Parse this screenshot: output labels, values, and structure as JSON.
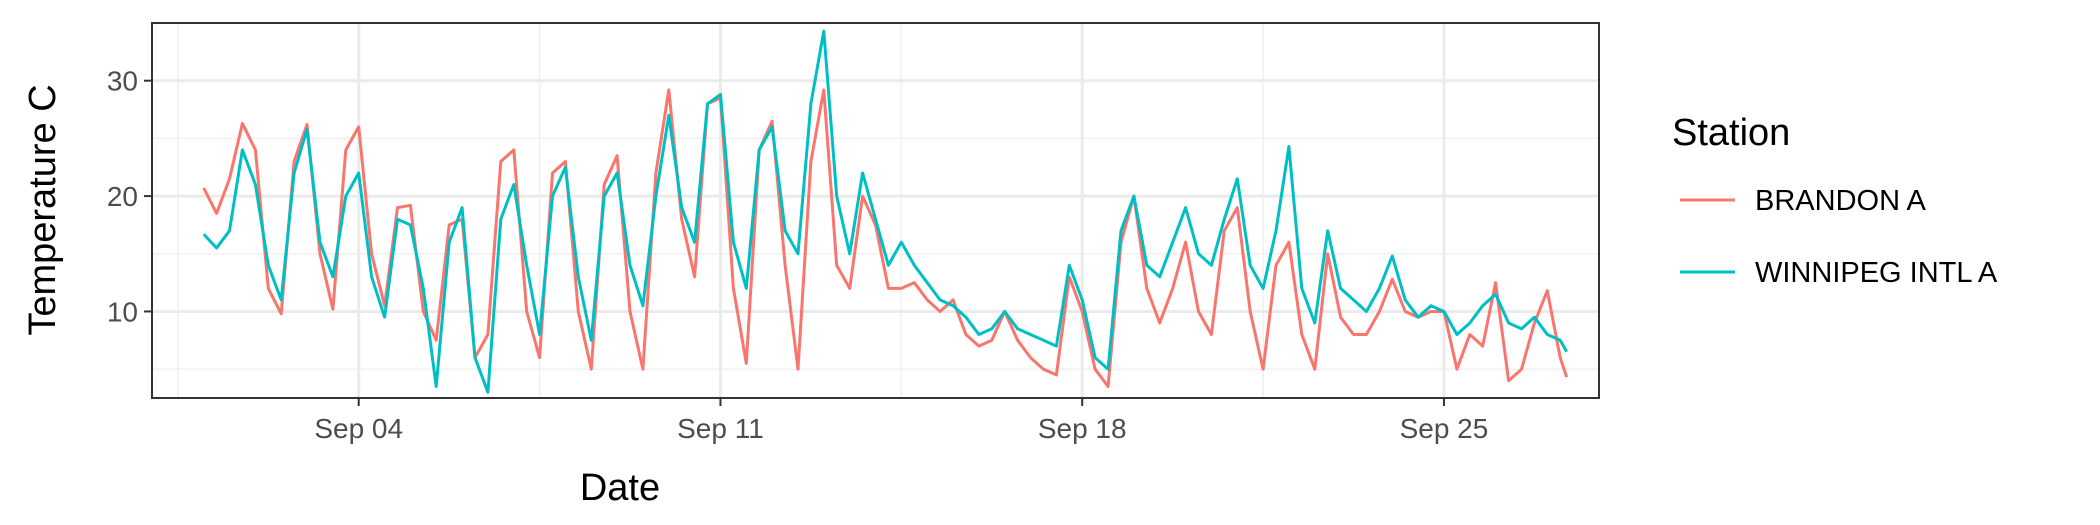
{
  "chart_data": {
    "type": "line",
    "title": "",
    "xlabel": "Date",
    "ylabel": "Temperature C",
    "x_type": "date",
    "xlim": [
      "2017-08-31T00:00",
      "2017-09-28T00:00"
    ],
    "ylim": [
      2.5,
      35
    ],
    "x_ticks": [
      {
        "value": "2017-09-04",
        "label": "Sep 04"
      },
      {
        "value": "2017-09-11",
        "label": "Sep 11"
      },
      {
        "value": "2017-09-18",
        "label": "Sep 18"
      },
      {
        "value": "2017-09-25",
        "label": "Sep 25"
      }
    ],
    "y_ticks": [
      10,
      20,
      30
    ],
    "grid": true,
    "legend": {
      "title": "Station",
      "position": "right"
    },
    "series": [
      {
        "name": "BRANDON A",
        "color": "#F8766D",
        "points": [
          [
            "2017-09-01T00:00",
            20.7
          ],
          [
            "2017-09-01T06:00",
            18.5
          ],
          [
            "2017-09-01T12:00",
            21.5
          ],
          [
            "2017-09-01T18:00",
            26.3
          ],
          [
            "2017-09-02T00:00",
            24.0
          ],
          [
            "2017-09-02T06:00",
            12.0
          ],
          [
            "2017-09-02T12:00",
            9.8
          ],
          [
            "2017-09-02T18:00",
            23.0
          ],
          [
            "2017-09-03T00:00",
            26.2
          ],
          [
            "2017-09-03T06:00",
            15.0
          ],
          [
            "2017-09-03T12:00",
            10.2
          ],
          [
            "2017-09-03T18:00",
            24.0
          ],
          [
            "2017-09-04T00:00",
            26.0
          ],
          [
            "2017-09-04T06:00",
            15.0
          ],
          [
            "2017-09-04T12:00",
            10.5
          ],
          [
            "2017-09-04T18:00",
            19.0
          ],
          [
            "2017-09-05T00:00",
            19.2
          ],
          [
            "2017-09-05T06:00",
            10.0
          ],
          [
            "2017-09-05T12:00",
            7.5
          ],
          [
            "2017-09-05T18:00",
            17.5
          ],
          [
            "2017-09-06T00:00",
            18.0
          ],
          [
            "2017-09-06T06:00",
            6.0
          ],
          [
            "2017-09-06T12:00",
            8.0
          ],
          [
            "2017-09-06T18:00",
            23.0
          ],
          [
            "2017-09-07T00:00",
            24.0
          ],
          [
            "2017-09-07T06:00",
            10.0
          ],
          [
            "2017-09-07T12:00",
            6.0
          ],
          [
            "2017-09-07T18:00",
            22.0
          ],
          [
            "2017-09-08T00:00",
            23.0
          ],
          [
            "2017-09-08T06:00",
            10.0
          ],
          [
            "2017-09-08T12:00",
            5.0
          ],
          [
            "2017-09-08T18:00",
            21.0
          ],
          [
            "2017-09-09T00:00",
            23.5
          ],
          [
            "2017-09-09T06:00",
            10.0
          ],
          [
            "2017-09-09T12:00",
            5.0
          ],
          [
            "2017-09-09T18:00",
            22.0
          ],
          [
            "2017-09-10T00:00",
            29.2
          ],
          [
            "2017-09-10T06:00",
            18.0
          ],
          [
            "2017-09-10T12:00",
            13.0
          ],
          [
            "2017-09-10T18:00",
            28.0
          ],
          [
            "2017-09-11T00:00",
            28.5
          ],
          [
            "2017-09-11T06:00",
            12.0
          ],
          [
            "2017-09-11T12:00",
            5.5
          ],
          [
            "2017-09-11T18:00",
            24.0
          ],
          [
            "2017-09-12T00:00",
            26.5
          ],
          [
            "2017-09-12T06:00",
            14.0
          ],
          [
            "2017-09-12T12:00",
            5.0
          ],
          [
            "2017-09-12T18:00",
            23.0
          ],
          [
            "2017-09-13T00:00",
            29.2
          ],
          [
            "2017-09-13T06:00",
            14.0
          ],
          [
            "2017-09-13T12:00",
            12.0
          ],
          [
            "2017-09-13T18:00",
            20.0
          ],
          [
            "2017-09-14T00:00",
            17.5
          ],
          [
            "2017-09-14T06:00",
            12.0
          ],
          [
            "2017-09-14T12:00",
            12.0
          ],
          [
            "2017-09-14T18:00",
            12.5
          ],
          [
            "2017-09-15T00:00",
            11.0
          ],
          [
            "2017-09-15T06:00",
            10.0
          ],
          [
            "2017-09-15T12:00",
            11.0
          ],
          [
            "2017-09-15T18:00",
            8.0
          ],
          [
            "2017-09-16T00:00",
            7.0
          ],
          [
            "2017-09-16T06:00",
            7.5
          ],
          [
            "2017-09-16T12:00",
            10.0
          ],
          [
            "2017-09-16T18:00",
            7.5
          ],
          [
            "2017-09-17T00:00",
            6.0
          ],
          [
            "2017-09-17T06:00",
            5.0
          ],
          [
            "2017-09-17T12:00",
            4.5
          ],
          [
            "2017-09-17T18:00",
            13.0
          ],
          [
            "2017-09-18T00:00",
            10.0
          ],
          [
            "2017-09-18T06:00",
            5.0
          ],
          [
            "2017-09-18T12:00",
            3.5
          ],
          [
            "2017-09-18T18:00",
            16.0
          ],
          [
            "2017-09-19T00:00",
            20.0
          ],
          [
            "2017-09-19T06:00",
            12.0
          ],
          [
            "2017-09-19T12:00",
            9.0
          ],
          [
            "2017-09-19T18:00",
            12.0
          ],
          [
            "2017-09-20T00:00",
            16.0
          ],
          [
            "2017-09-20T06:00",
            10.0
          ],
          [
            "2017-09-20T12:00",
            8.0
          ],
          [
            "2017-09-20T18:00",
            17.0
          ],
          [
            "2017-09-21T00:00",
            19.0
          ],
          [
            "2017-09-21T06:00",
            10.0
          ],
          [
            "2017-09-21T12:00",
            5.0
          ],
          [
            "2017-09-21T18:00",
            14.0
          ],
          [
            "2017-09-22T00:00",
            16.0
          ],
          [
            "2017-09-22T06:00",
            8.0
          ],
          [
            "2017-09-22T12:00",
            5.0
          ],
          [
            "2017-09-22T18:00",
            15.0
          ],
          [
            "2017-09-23T00:00",
            9.5
          ],
          [
            "2017-09-23T06:00",
            8.0
          ],
          [
            "2017-09-23T12:00",
            8.0
          ],
          [
            "2017-09-23T18:00",
            10.0
          ],
          [
            "2017-09-24T00:00",
            12.8
          ],
          [
            "2017-09-24T06:00",
            10.0
          ],
          [
            "2017-09-24T12:00",
            9.5
          ],
          [
            "2017-09-24T18:00",
            10.0
          ],
          [
            "2017-09-25T00:00",
            10.0
          ],
          [
            "2017-09-25T06:00",
            5.0
          ],
          [
            "2017-09-25T12:00",
            8.0
          ],
          [
            "2017-09-25T18:00",
            7.0
          ],
          [
            "2017-09-26T00:00",
            12.5
          ],
          [
            "2017-09-26T06:00",
            4.0
          ],
          [
            "2017-09-26T12:00",
            5.0
          ],
          [
            "2017-09-26T18:00",
            9.0
          ],
          [
            "2017-09-27T00:00",
            11.8
          ],
          [
            "2017-09-27T06:00",
            6.0
          ],
          [
            "2017-09-27T09:00",
            4.3
          ]
        ]
      },
      {
        "name": "WINNIPEG INTL A",
        "color": "#00BFC4",
        "points": [
          [
            "2017-09-01T00:00",
            16.7
          ],
          [
            "2017-09-01T06:00",
            15.5
          ],
          [
            "2017-09-01T12:00",
            17.0
          ],
          [
            "2017-09-01T18:00",
            24.0
          ],
          [
            "2017-09-02T00:00",
            21.0
          ],
          [
            "2017-09-02T06:00",
            14.0
          ],
          [
            "2017-09-02T12:00",
            11.0
          ],
          [
            "2017-09-02T18:00",
            22.0
          ],
          [
            "2017-09-03T00:00",
            25.8
          ],
          [
            "2017-09-03T06:00",
            16.0
          ],
          [
            "2017-09-03T12:00",
            13.0
          ],
          [
            "2017-09-03T18:00",
            20.0
          ],
          [
            "2017-09-04T00:00",
            22.0
          ],
          [
            "2017-09-04T06:00",
            13.0
          ],
          [
            "2017-09-04T12:00",
            9.5
          ],
          [
            "2017-09-04T18:00",
            18.0
          ],
          [
            "2017-09-05T00:00",
            17.5
          ],
          [
            "2017-09-05T06:00",
            12.0
          ],
          [
            "2017-09-05T12:00",
            3.5
          ],
          [
            "2017-09-05T18:00",
            16.0
          ],
          [
            "2017-09-06T00:00",
            19.0
          ],
          [
            "2017-09-06T06:00",
            6.0
          ],
          [
            "2017-09-06T12:00",
            3.0
          ],
          [
            "2017-09-06T18:00",
            18.0
          ],
          [
            "2017-09-07T00:00",
            21.0
          ],
          [
            "2017-09-07T06:00",
            14.0
          ],
          [
            "2017-09-07T12:00",
            8.0
          ],
          [
            "2017-09-07T18:00",
            20.0
          ],
          [
            "2017-09-08T00:00",
            22.5
          ],
          [
            "2017-09-08T06:00",
            13.0
          ],
          [
            "2017-09-08T12:00",
            7.5
          ],
          [
            "2017-09-08T18:00",
            20.0
          ],
          [
            "2017-09-09T00:00",
            22.0
          ],
          [
            "2017-09-09T06:00",
            14.0
          ],
          [
            "2017-09-09T12:00",
            10.5
          ],
          [
            "2017-09-09T18:00",
            20.0
          ],
          [
            "2017-09-10T00:00",
            27.0
          ],
          [
            "2017-09-10T06:00",
            19.0
          ],
          [
            "2017-09-10T12:00",
            16.0
          ],
          [
            "2017-09-10T18:00",
            28.0
          ],
          [
            "2017-09-11T00:00",
            28.8
          ],
          [
            "2017-09-11T06:00",
            16.0
          ],
          [
            "2017-09-11T12:00",
            12.0
          ],
          [
            "2017-09-11T18:00",
            24.0
          ],
          [
            "2017-09-12T00:00",
            26.0
          ],
          [
            "2017-09-12T06:00",
            17.0
          ],
          [
            "2017-09-12T12:00",
            15.0
          ],
          [
            "2017-09-12T18:00",
            28.0
          ],
          [
            "2017-09-13T00:00",
            34.3
          ],
          [
            "2017-09-13T06:00",
            20.0
          ],
          [
            "2017-09-13T12:00",
            15.0
          ],
          [
            "2017-09-13T18:00",
            22.0
          ],
          [
            "2017-09-14T00:00",
            18.0
          ],
          [
            "2017-09-14T06:00",
            14.0
          ],
          [
            "2017-09-14T12:00",
            16.0
          ],
          [
            "2017-09-14T18:00",
            14.0
          ],
          [
            "2017-09-15T00:00",
            12.5
          ],
          [
            "2017-09-15T06:00",
            11.0
          ],
          [
            "2017-09-15T12:00",
            10.5
          ],
          [
            "2017-09-15T18:00",
            9.5
          ],
          [
            "2017-09-16T00:00",
            8.0
          ],
          [
            "2017-09-16T06:00",
            8.5
          ],
          [
            "2017-09-16T12:00",
            10.0
          ],
          [
            "2017-09-16T18:00",
            8.5
          ],
          [
            "2017-09-17T00:00",
            8.0
          ],
          [
            "2017-09-17T06:00",
            7.5
          ],
          [
            "2017-09-17T12:00",
            7.0
          ],
          [
            "2017-09-17T18:00",
            14.0
          ],
          [
            "2017-09-18T00:00",
            11.0
          ],
          [
            "2017-09-18T06:00",
            6.0
          ],
          [
            "2017-09-18T12:00",
            5.0
          ],
          [
            "2017-09-18T18:00",
            17.0
          ],
          [
            "2017-09-19T00:00",
            20.0
          ],
          [
            "2017-09-19T06:00",
            14.0
          ],
          [
            "2017-09-19T12:00",
            13.0
          ],
          [
            "2017-09-19T18:00",
            16.0
          ],
          [
            "2017-09-20T00:00",
            19.0
          ],
          [
            "2017-09-20T06:00",
            15.0
          ],
          [
            "2017-09-20T12:00",
            14.0
          ],
          [
            "2017-09-20T18:00",
            18.0
          ],
          [
            "2017-09-21T00:00",
            21.5
          ],
          [
            "2017-09-21T06:00",
            14.0
          ],
          [
            "2017-09-21T12:00",
            12.0
          ],
          [
            "2017-09-21T18:00",
            17.0
          ],
          [
            "2017-09-22T00:00",
            24.3
          ],
          [
            "2017-09-22T06:00",
            12.0
          ],
          [
            "2017-09-22T12:00",
            9.0
          ],
          [
            "2017-09-22T18:00",
            17.0
          ],
          [
            "2017-09-23T00:00",
            12.0
          ],
          [
            "2017-09-23T06:00",
            11.0
          ],
          [
            "2017-09-23T12:00",
            10.0
          ],
          [
            "2017-09-23T18:00",
            12.0
          ],
          [
            "2017-09-24T00:00",
            14.8
          ],
          [
            "2017-09-24T06:00",
            11.0
          ],
          [
            "2017-09-24T12:00",
            9.5
          ],
          [
            "2017-09-24T18:00",
            10.5
          ],
          [
            "2017-09-25T00:00",
            10.0
          ],
          [
            "2017-09-25T06:00",
            8.0
          ],
          [
            "2017-09-25T12:00",
            9.0
          ],
          [
            "2017-09-25T18:00",
            10.5
          ],
          [
            "2017-09-26T00:00",
            11.5
          ],
          [
            "2017-09-26T06:00",
            9.0
          ],
          [
            "2017-09-26T12:00",
            8.5
          ],
          [
            "2017-09-26T18:00",
            9.5
          ],
          [
            "2017-09-27T00:00",
            8.0
          ],
          [
            "2017-09-27T06:00",
            7.5
          ],
          [
            "2017-09-27T09:00",
            6.5
          ]
        ]
      }
    ]
  }
}
